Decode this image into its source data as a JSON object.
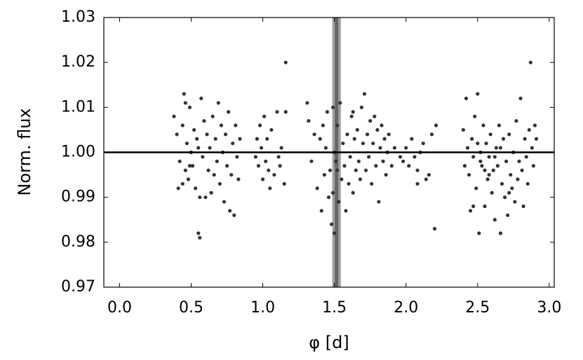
{
  "chart_data": {
    "type": "scatter",
    "x_label": "φ [d]",
    "y_label": "Norm. flux",
    "color": "#333333",
    "xlim": [
      -0.11,
      3.035
    ],
    "ylim": [
      0.97,
      1.03
    ],
    "xticks": [
      {
        "value": 0,
        "label": "0.0"
      },
      {
        "value": 0.5,
        "label": "0.5"
      },
      {
        "value": 1,
        "label": "1.0"
      },
      {
        "value": 1.5,
        "label": "1.5"
      },
      {
        "value": 2,
        "label": "2.0"
      },
      {
        "value": 2.5,
        "label": "2.5"
      },
      {
        "value": 3,
        "label": "3.0"
      }
    ],
    "yticks": [
      0.97,
      0.98,
      0.99,
      {
        "value": 1,
        "label": "1.00"
      },
      1.01,
      1.02,
      1.03
    ],
    "hline": 1.0,
    "vspan": [
      1.485,
      1.545
    ],
    "vline": 1.515,
    "x": [
      0.38,
      0.4,
      0.42,
      0.44,
      0.45,
      0.46,
      0.47,
      0.48,
      0.49,
      0.5,
      0.51,
      0.52,
      0.53,
      0.54,
      0.55,
      0.56,
      0.57,
      0.58,
      0.59,
      0.6,
      0.61,
      0.62,
      0.63,
      0.64,
      0.65,
      0.66,
      0.67,
      0.68,
      0.69,
      0.7,
      0.71,
      0.72,
      0.73,
      0.74,
      0.75,
      0.76,
      0.77,
      0.78,
      0.79,
      0.8,
      0.81,
      0.82,
      0.83,
      0.84,
      0.41,
      0.55,
      0.56,
      0.49,
      0.46,
      0.44,
      0.95,
      0.96,
      0.97,
      0.98,
      0.99,
      1.0,
      1.01,
      1.02,
      1.03,
      1.04,
      1.05,
      1.06,
      1.08,
      1.1,
      1.11,
      1.12,
      1.13,
      1.15,
      1.16,
      1.16,
      1.31,
      1.32,
      1.34,
      1.36,
      1.38,
      1.4,
      1.41,
      1.42,
      1.43,
      1.44,
      1.45,
      1.46,
      1.47,
      1.48,
      1.49,
      1.5,
      1.51,
      1.52,
      1.53,
      1.54,
      1.55,
      1.56,
      1.57,
      1.58,
      1.59,
      1.6,
      1.61,
      1.62,
      1.63,
      1.64,
      1.65,
      1.66,
      1.67,
      1.68,
      1.69,
      1.7,
      1.71,
      1.72,
      1.73,
      1.74,
      1.75,
      1.76,
      1.77,
      1.78,
      1.79,
      1.8,
      1.81,
      1.82,
      1.83,
      1.84,
      1.85,
      1.86,
      1.87,
      1.88,
      1.9,
      1.92,
      1.49,
      1.5,
      1.52,
      1.63,
      1.96,
      1.98,
      2.0,
      2.02,
      2.04,
      2.06,
      2.08,
      2.1,
      2.12,
      2.14,
      2.16,
      2.18,
      2.2,
      2.21,
      2.08,
      2.4,
      2.41,
      2.42,
      2.43,
      2.44,
      2.45,
      2.46,
      2.47,
      2.48,
      2.49,
      2.5,
      2.51,
      2.52,
      2.53,
      2.54,
      2.55,
      2.56,
      2.57,
      2.58,
      2.59,
      2.6,
      2.61,
      2.62,
      2.63,
      2.64,
      2.65,
      2.66,
      2.67,
      2.68,
      2.69,
      2.7,
      2.71,
      2.72,
      2.73,
      2.74,
      2.75,
      2.76,
      2.77,
      2.78,
      2.79,
      2.8,
      2.81,
      2.82,
      2.83,
      2.84,
      2.85,
      2.86,
      2.87,
      2.88,
      2.89,
      2.9,
      2.91,
      2.5,
      2.52,
      2.47,
      2.62,
      2.66,
      2.55,
      2.58,
      2.72
    ],
    "values": [
      1.008,
      1.004,
      0.998,
      1.006,
      1.013,
      0.996,
      1.002,
      0.994,
      1.01,
      1.0,
      0.997,
      1.005,
      0.992,
      1.003,
      0.982,
      0.981,
      1.012,
      0.999,
      1.007,
      0.99,
      1.004,
      0.996,
      1.001,
      0.991,
      1.008,
      0.995,
      1.003,
      0.998,
      1.011,
      0.993,
      1.006,
      1.0,
      0.989,
      1.004,
      0.997,
      1.009,
      0.987,
      0.995,
      1.002,
      0.986,
      1.006,
      0.999,
      0.994,
      1.003,
      0.992,
      1.001,
      0.99,
      0.997,
      1.011,
      0.993,
      0.999,
      1.003,
      0.997,
      1.006,
      1.001,
      0.994,
      1.008,
      0.998,
      1.003,
      0.996,
      0.992,
      1.005,
      0.995,
      1.009,
      0.999,
      0.997,
      1.001,
      0.993,
      1.02,
      1.009,
      1.011,
      1.007,
      0.998,
      1.004,
      0.992,
      1.003,
      0.987,
      1.006,
      0.995,
      1.001,
      1.009,
      0.99,
      0.996,
      0.984,
      1.01,
      0.982,
      0.998,
      1.006,
      0.989,
      1.011,
      0.994,
      1.002,
      0.997,
      0.987,
      1.004,
      0.993,
      0.999,
      1.008,
      0.991,
      1.003,
      0.996,
      1.005,
      0.998,
      0.994,
      1.01,
      1.002,
      1.013,
      0.996,
      1.004,
      0.999,
      1.007,
      0.993,
      1.002,
      1.008,
      0.997,
      1.005,
      0.989,
      1.001,
      1.006,
      0.998,
      1.003,
      0.995,
      1.0,
      1.004,
      0.997,
      1.001,
      0.991,
      1.0,
      0.996,
      1.009,
      0.999,
      0.998,
      1.001,
      0.997,
      1.003,
      0.999,
      0.996,
      1.0,
      1.002,
      0.994,
      0.995,
      1.004,
      0.983,
      1.006,
      0.993,
      1.005,
      0.997,
      1.012,
      1.001,
      0.995,
      0.987,
      1.003,
      0.999,
      1.008,
      0.992,
      1.013,
      0.982,
      1.0,
      0.997,
      1.006,
      0.988,
      1.002,
      0.994,
      0.999,
      1.004,
      0.991,
      0.996,
      0.985,
      1.001,
      0.997,
      1.006,
      0.982,
      0.993,
      1.003,
      0.99,
      0.998,
      0.986,
      1.004,
      0.995,
      0.992,
      1.0,
      0.989,
      1.007,
      0.994,
      0.998,
      1.012,
      0.996,
      0.988,
      1.003,
      0.999,
      0.993,
      1.005,
      1.02,
      1.001,
      0.997,
      1.006,
      1.003,
      1.002,
      0.998,
      0.988,
      0.999,
      1.001,
      0.996,
      0.995,
      0.991
    ]
  }
}
